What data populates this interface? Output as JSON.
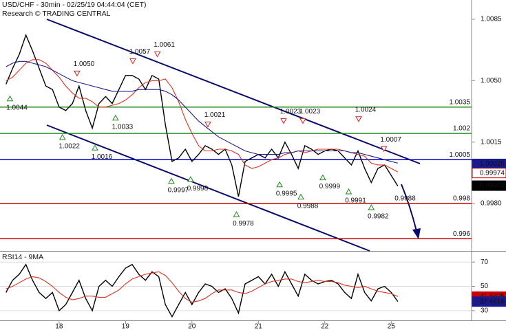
{
  "chart_data": [
    {
      "type": "line",
      "title": "USD/CHF - 30min - 02/25/19 04:44:04 (CET)",
      "subtitle": "Research © TRADING CENTRAL",
      "x": [
        0.2,
        0.3,
        0.4,
        0.5,
        0.6,
        0.7,
        0.8,
        0.9,
        1.0,
        1.1,
        1.2,
        1.3,
        1.4,
        1.5,
        1.6,
        1.7,
        1.8,
        1.9,
        2.0,
        2.1,
        2.2,
        2.3,
        2.4,
        2.5,
        2.6,
        2.7,
        2.8,
        2.9,
        3.0,
        3.1,
        3.2,
        3.3,
        3.4,
        3.5,
        3.6,
        3.7,
        3.8,
        3.9,
        4.0,
        4.1,
        4.2,
        4.3,
        4.4,
        4.5,
        4.6,
        4.7,
        4.8,
        4.9,
        5.0,
        5.1,
        5.2,
        5.3,
        5.4,
        5.5,
        5.6,
        5.7,
        5.8,
        5.9,
        6.0,
        6.1
      ],
      "xlim": [
        0.11,
        7.21
      ],
      "ylim": [
        0.9953,
        1.0096
      ],
      "yticks": [
        {
          "value": 0.998,
          "label": "0.9980"
        },
        1.0015,
        {
          "value": 1.005,
          "label": "1.0050"
        },
        1.0085
      ],
      "series": [
        {
          "name": "price",
          "color": "#000000",
          "values": [
            1.0048,
            1.0057,
            1.0065,
            1.0076,
            1.0067,
            1.0057,
            1.0047,
            1.0045,
            1.0035,
            1.0033,
            1.0037,
            1.0047,
            1.0033,
            1.0023,
            1.0037,
            1.0041,
            1.0037,
            1.0045,
            1.0053,
            1.0053,
            1.0051,
            1.0045,
            1.0053,
            1.0051,
            1.0025,
            1.0004,
            1.0006,
            1.0011,
            1.0004,
            1.0008,
            1.0013,
            1.0011,
            1.0008,
            1.0011,
            1.0002,
            0.9984,
            1.0004,
            1.0006,
            1.0008,
            1.0006,
            1.0011,
            1.0006,
            1.0015,
            1.0008,
            1.0,
            1.0013,
            1.0011,
            1.0008,
            1.001,
            1.0011,
            1.001,
            1.0006,
            1.0002,
            1.001,
            1.0,
            0.9992,
            1.0,
            1.0002,
            0.9996,
            0.999
          ]
        },
        {
          "name": "fast-ma",
          "color": "#e0301e",
          "values": [
            1.005,
            1.0052,
            1.0056,
            1.006,
            1.0062,
            1.0062,
            1.006,
            1.0056,
            1.0052,
            1.0047,
            1.0043,
            1.004,
            1.004,
            1.0038,
            1.0035,
            1.0035,
            1.0036,
            1.0037,
            1.0039,
            1.0042,
            1.0046,
            1.0049,
            1.005,
            1.005,
            1.0051,
            1.0046,
            1.0038,
            1.0028,
            1.002,
            1.0013,
            1.001,
            1.001,
            1.0011,
            1.0011,
            1.001,
            1.0008,
            1.0002,
            1.0,
            1.0001,
            1.0003,
            1.0005,
            1.0006,
            1.0008,
            1.0009,
            1.001,
            1.0009,
            1.001,
            1.0011,
            1.0011,
            1.0011,
            1.0011,
            1.001,
            1.0009,
            1.0008,
            1.0007,
            1.0003,
            1.0002,
            1.0002,
            1.0,
            0.9998
          ]
        },
        {
          "name": "slow-ma",
          "color": "#1a1a8c",
          "values": [
            1.0058,
            1.006,
            1.0061,
            1.0061,
            1.006,
            1.0059,
            1.0058,
            1.0056,
            1.0054,
            1.0052,
            1.005,
            1.0049,
            1.0048,
            1.0047,
            1.0046,
            1.0045,
            1.0044,
            1.0044,
            1.0044,
            1.0044,
            1.0045,
            1.0045,
            1.0045,
            1.0045,
            1.0044,
            1.0042,
            1.0039,
            1.0035,
            1.0031,
            1.0027,
            1.0024,
            1.0021,
            1.0018,
            1.0016,
            1.0014,
            1.0012,
            1.001,
            1.0009,
            1.0008,
            1.0008,
            1.0008,
            1.0008,
            1.0009,
            1.0009,
            1.001,
            1.001,
            1.001,
            1.001,
            1.001,
            1.001,
            1.001,
            1.001,
            1.0009,
            1.0009,
            1.0008,
            1.0007,
            1.0006,
            1.0005,
            1.0004,
            1.0003
          ]
        }
      ],
      "levels": [
        {
          "value": 1.0035,
          "color": "#1a8a1a"
        },
        {
          "value": 1.002,
          "color": "#1a8a1a"
        },
        {
          "value": 1.0005,
          "color": "#0000cc"
        },
        {
          "value": 0.998,
          "color": "#cc0000"
        },
        {
          "value": 0.996,
          "color": "#cc0000"
        }
      ],
      "last_values": [
        {
          "value": 1.00026,
          "color": "#1a1a8c",
          "filled": true
        },
        {
          "value": 0.99974,
          "color": "#cc0000",
          "filled": false
        },
        {
          "value": 0.99902,
          "color": "#000000",
          "filled": true
        }
      ],
      "annotations": {
        "x": [
          0.26,
          1.27,
          2.11,
          2.48,
          1.85,
          1.05,
          1.54,
          3.24,
          2.69,
          2.98,
          3.67,
          4.38,
          4.67,
          4.32,
          4.64,
          4.97,
          5.51,
          5.36,
          5.89,
          5.7,
          6.21
        ],
        "values": [
          1.0044,
          1.005,
          1.0057,
          1.0061,
          1.0033,
          1.0022,
          1.0016,
          1.0021,
          0.9997,
          0.9998,
          0.9978,
          1.0023,
          1.0023,
          0.9995,
          0.9988,
          0.9999,
          1.0024,
          0.9991,
          1.0007,
          0.9982,
          0.9988
        ],
        "value_labels": [
          "1.0044",
          "1.0050",
          "1.0057",
          "1.0061",
          "1.0033",
          "1.0022",
          "1.0016",
          "1.0021",
          "0.9997",
          "0.9998",
          "0.9978",
          "1.0023",
          "1.0023",
          "0.9995",
          "0.9988",
          "0.9999",
          "1.0024",
          "0.9991",
          "1.0007",
          "0.9982",
          "0.9988"
        ],
        "kinds": [
          "low",
          "high",
          "high",
          "high",
          "low",
          "low",
          "low",
          "high",
          "low",
          "low",
          "low",
          "high",
          "high",
          "low",
          "low",
          "low",
          "high",
          "low",
          "high",
          "low",
          "target"
        ]
      }
    },
    {
      "type": "line",
      "title": "RSI14 - 9MA",
      "x": [
        0.2,
        0.3,
        0.4,
        0.5,
        0.6,
        0.7,
        0.8,
        0.9,
        1.0,
        1.1,
        1.2,
        1.3,
        1.4,
        1.5,
        1.6,
        1.7,
        1.8,
        1.9,
        2.0,
        2.1,
        2.2,
        2.3,
        2.4,
        2.5,
        2.6,
        2.7,
        2.8,
        2.9,
        3.0,
        3.1,
        3.2,
        3.3,
        3.4,
        3.5,
        3.6,
        3.7,
        3.8,
        3.9,
        4.0,
        4.1,
        4.2,
        4.3,
        4.4,
        4.5,
        4.6,
        4.7,
        4.8,
        4.9,
        5.0,
        5.1,
        5.2,
        5.3,
        5.4,
        5.5,
        5.6,
        5.7,
        5.8,
        5.9,
        6.0,
        6.1
      ],
      "xlim": [
        0.11,
        7.21
      ],
      "xticks": [
        {
          "value": 1,
          "label": "18"
        },
        {
          "value": 2,
          "label": "19"
        },
        {
          "value": 3,
          "label": "20"
        },
        {
          "value": 4,
          "label": "21"
        },
        {
          "value": 5,
          "label": "22"
        },
        {
          "value": 6,
          "label": "25"
        }
      ],
      "ylim": [
        22,
        78.6
      ],
      "yticks": [
        30,
        50,
        70
      ],
      "grid": true,
      "series": [
        {
          "name": "rsi",
          "color": "#000000",
          "values": [
            45,
            55,
            60,
            68,
            55,
            45,
            40,
            45,
            30,
            35,
            45,
            55,
            40,
            30,
            50,
            55,
            50,
            58,
            65,
            68,
            60,
            55,
            62,
            58,
            35,
            25,
            35,
            45,
            35,
            45,
            52,
            50,
            45,
            48,
            40,
            28,
            52,
            55,
            58,
            52,
            60,
            50,
            62,
            52,
            42,
            60,
            55,
            52,
            54,
            55,
            52,
            45,
            40,
            60,
            45,
            38,
            48,
            50,
            45,
            37.5
          ]
        },
        {
          "name": "rsi-ma",
          "color": "#e0301e",
          "values": [
            48,
            50,
            53,
            56,
            58,
            57,
            54,
            50,
            45,
            41,
            39,
            40,
            42,
            42,
            41,
            41,
            44,
            47,
            52,
            56,
            58,
            60,
            61,
            62,
            59,
            53,
            46,
            40,
            37,
            38,
            40,
            44,
            47,
            47,
            47,
            45,
            44,
            46,
            49,
            52,
            54,
            55,
            56,
            56,
            54,
            53,
            54,
            55,
            54,
            54,
            53,
            51,
            50,
            49,
            50,
            48,
            46,
            45,
            44,
            41.6
          ]
        }
      ],
      "last_values": [
        {
          "value": 41.5825,
          "color": "#cc0000",
          "filled": true
        },
        {
          "value": 37.4616,
          "color": "#1a1a8c",
          "filled": true
        }
      ]
    }
  ]
}
